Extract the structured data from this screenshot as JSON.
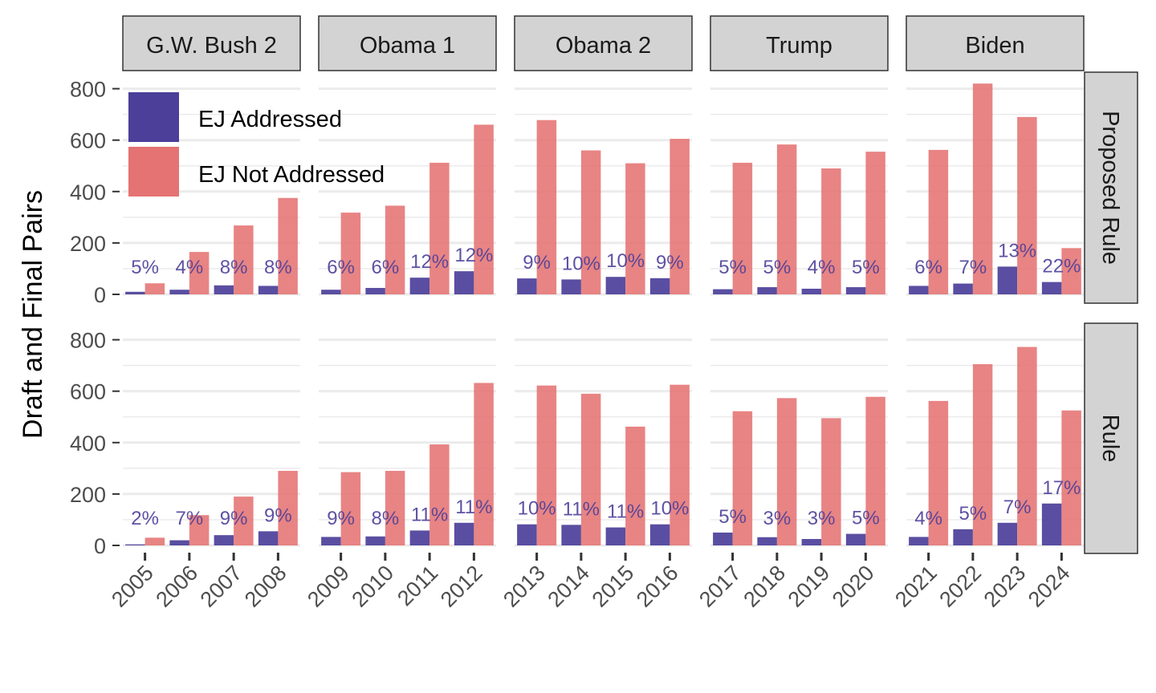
{
  "chart_data": {
    "type": "bar",
    "ylabel": "Draft and Final Pairs",
    "xlabel": "",
    "ylim": [
      0,
      850
    ],
    "yticks": [
      "0",
      "200",
      "400",
      "600",
      "800"
    ],
    "legend": {
      "placement": "top-left",
      "entries": [
        "EJ Addressed",
        "EJ Not Addressed"
      ]
    },
    "colors": {
      "addressed": "#4b3f99",
      "not_addressed": "#e57373"
    },
    "administrations": [
      {
        "label": "G.W. Bush 2",
        "years": [
          "2005",
          "2006",
          "2007",
          "2008"
        ]
      },
      {
        "label": "Obama 1",
        "years": [
          "2009",
          "2010",
          "2011",
          "2012"
        ]
      },
      {
        "label": "Obama 2",
        "years": [
          "2013",
          "2014",
          "2015",
          "2016"
        ]
      },
      {
        "label": "Trump",
        "years": [
          "2017",
          "2018",
          "2019",
          "2020"
        ]
      },
      {
        "label": "Biden",
        "years": [
          "2021",
          "2022",
          "2023",
          "2024"
        ]
      }
    ],
    "rows": [
      {
        "label": "Proposed Rule",
        "addressed": [
          10,
          18,
          35,
          33,
          18,
          25,
          65,
          90,
          62,
          58,
          68,
          63,
          20,
          28,
          22,
          28,
          33,
          42,
          108,
          48
        ],
        "not_addressed": [
          43,
          165,
          268,
          375,
          318,
          345,
          512,
          660,
          678,
          560,
          510,
          605,
          512,
          583,
          490,
          555,
          562,
          820,
          690,
          180
        ],
        "pct_labels": [
          "5%",
          "4%",
          "8%",
          "8%",
          "6%",
          "6%",
          "12%",
          "12%",
          "9%",
          "10%",
          "10%",
          "9%",
          "5%",
          "5%",
          "4%",
          "5%",
          "6%",
          "7%",
          "13%",
          "22%"
        ]
      },
      {
        "label": "Rule",
        "addressed": [
          4,
          20,
          40,
          55,
          33,
          35,
          58,
          88,
          82,
          80,
          70,
          82,
          50,
          32,
          25,
          45,
          33,
          63,
          88,
          163
        ],
        "not_addressed": [
          30,
          118,
          190,
          290,
          285,
          290,
          393,
          632,
          622,
          590,
          462,
          625,
          522,
          573,
          495,
          578,
          562,
          705,
          772,
          525
        ],
        "pct_labels": [
          "2%",
          "7%",
          "9%",
          "9%",
          "9%",
          "8%",
          "11%",
          "11%",
          "10%",
          "11%",
          "11%",
          "10%",
          "5%",
          "3%",
          "3%",
          "5%",
          "4%",
          "5%",
          "7%",
          "17%"
        ]
      }
    ]
  }
}
